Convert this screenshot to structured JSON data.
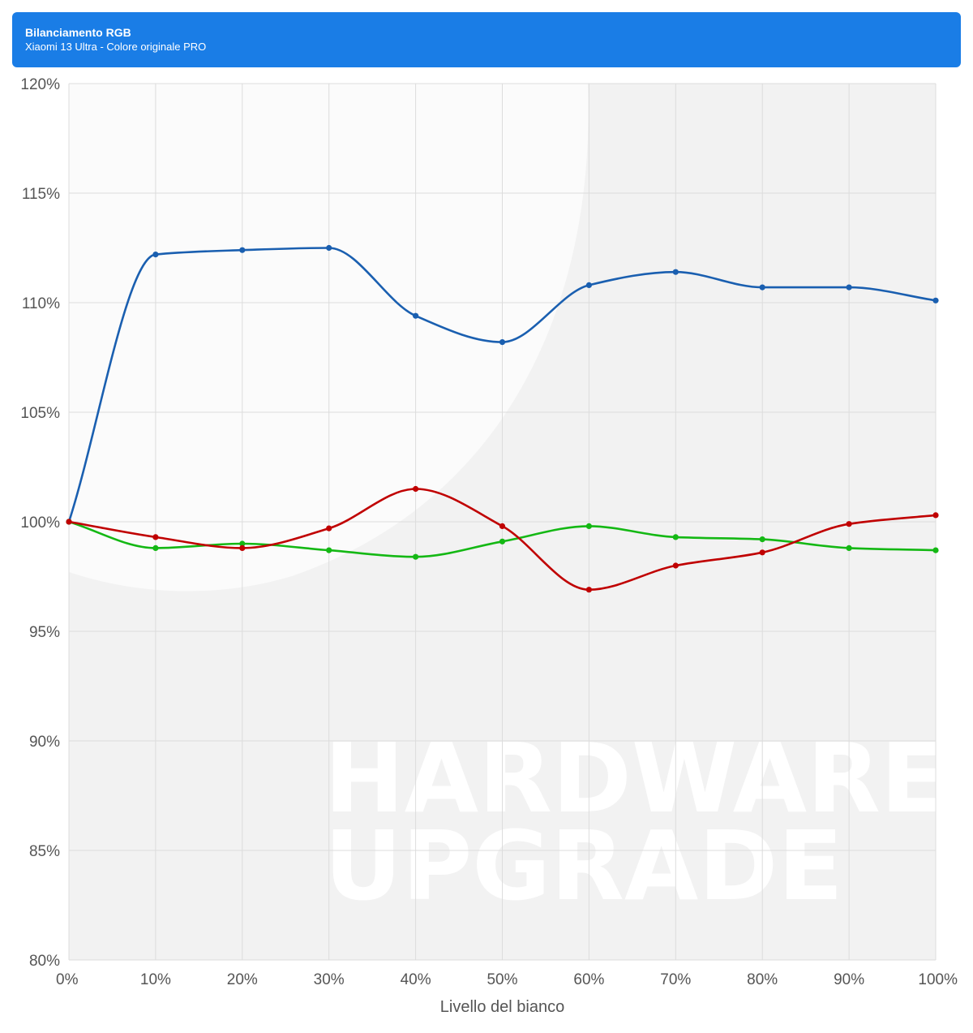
{
  "header": {
    "title": "Bilanciamento RGB",
    "subtitle": "Xiaomi 13 Ultra - Colore originale PRO"
  },
  "watermark": {
    "line1": "HARDWARE",
    "line2": "UPGRADE"
  },
  "colors": {
    "header_bg": "#1a7de6",
    "blue": "#1a5fb0",
    "green": "#14b814",
    "red": "#c00000"
  },
  "chart_data": {
    "type": "line",
    "xlabel": "Livello del bianco",
    "ylabel": "",
    "categories": [
      "0%",
      "10%",
      "20%",
      "30%",
      "40%",
      "50%",
      "60%",
      "70%",
      "80%",
      "90%",
      "100%"
    ],
    "ylim": [
      80,
      120
    ],
    "yticks": [
      80,
      85,
      90,
      95,
      100,
      105,
      110,
      115,
      120
    ],
    "ytick_labels": [
      "80%",
      "85%",
      "90%",
      "95%",
      "100%",
      "105%",
      "110%",
      "115%",
      "120%"
    ],
    "grid": true,
    "series": [
      {
        "color": "#1a5fb0",
        "values": [
          100,
          112.2,
          112.4,
          112.5,
          109.4,
          108.2,
          110.8,
          111.4,
          110.7,
          110.7,
          110.1
        ]
      },
      {
        "color": "#14b814",
        "values": [
          100,
          98.8,
          99.0,
          98.7,
          98.4,
          99.1,
          99.8,
          99.3,
          99.2,
          98.8,
          98.7
        ]
      },
      {
        "color": "#c00000",
        "values": [
          100,
          99.3,
          98.8,
          99.7,
          101.5,
          99.8,
          96.9,
          98.0,
          98.6,
          99.9,
          100.3
        ]
      }
    ]
  }
}
